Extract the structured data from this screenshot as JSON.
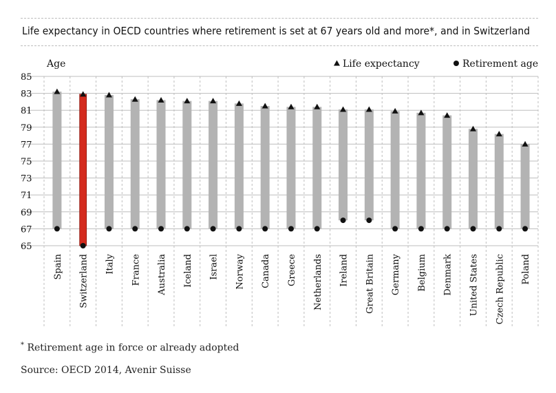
{
  "title": "Life expectancy in OECD countries where retirement is set at 67 years old and more*, and in Switzerland",
  "footnote": "Retirement age in force or already adopted",
  "footnote_mark": "*",
  "source": "Source: OECD 2014, Avenir Suisse",
  "colors": {
    "bar": "#b3b3b3",
    "highlight": "#d42b1e",
    "marker": "#111111",
    "grid": "#bdbdbd"
  },
  "chart_data": {
    "type": "bar",
    "ylabel": "Age",
    "ylim": [
      65,
      85
    ],
    "yticks": [
      65,
      67,
      69,
      71,
      73,
      75,
      77,
      79,
      81,
      83,
      85
    ],
    "highlight_category": "Switzerland",
    "categories": [
      "Spain",
      "Switzerland",
      "Italy",
      "France",
      "Australia",
      "Iceland",
      "Israel",
      "Norway",
      "Canada",
      "Greece",
      "Netherlands",
      "Ireland",
      "Great Britain",
      "Germany",
      "Belgium",
      "Denmark",
      "United States",
      "Czech Republic",
      "Poland"
    ],
    "series": [
      {
        "name": "Life expectancy",
        "marker": "triangle",
        "values": [
          83.2,
          82.9,
          82.8,
          82.3,
          82.2,
          82.1,
          82.1,
          81.8,
          81.5,
          81.4,
          81.4,
          81.1,
          81.1,
          80.9,
          80.7,
          80.4,
          78.8,
          78.2,
          77.0
        ]
      },
      {
        "name": "Retirement age",
        "marker": "circle",
        "values": [
          67,
          65,
          67,
          67,
          67,
          67,
          67,
          67,
          67,
          67,
          67,
          68,
          68,
          67,
          67,
          67,
          67,
          67,
          67
        ]
      }
    ],
    "legend_position": "top-right",
    "grid": true
  }
}
